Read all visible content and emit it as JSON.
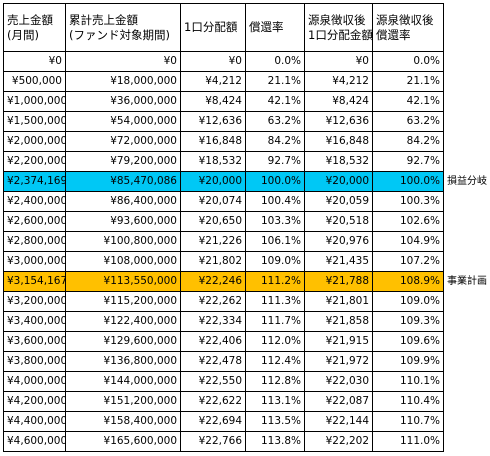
{
  "columns": [
    {
      "line1": "売上金額",
      "line2": "(月間)"
    },
    {
      "line1": "累計売上金額",
      "line2": "(ファンド対象期間)"
    },
    {
      "line1": "1口分配額",
      "line2": ""
    },
    {
      "line1": "償還率",
      "line2": ""
    },
    {
      "line1": "源泉徴収後",
      "line2": "1口分配金額"
    },
    {
      "line1": "源泉徴収後",
      "line2": "償還率"
    }
  ],
  "rows": [
    {
      "sales": "¥0",
      "cumulative": "¥0",
      "dist": "¥0",
      "rate": "0.0%",
      "dist_after_tax": "¥0",
      "rate_after_tax": "0.0%"
    },
    {
      "sales": "¥500,000",
      "cumulative": "¥18,000,000",
      "dist": "¥4,212",
      "rate": "21.1%",
      "dist_after_tax": "¥4,212",
      "rate_after_tax": "21.1%"
    },
    {
      "sales": "¥1,000,000",
      "cumulative": "¥36,000,000",
      "dist": "¥8,424",
      "rate": "42.1%",
      "dist_after_tax": "¥8,424",
      "rate_after_tax": "42.1%"
    },
    {
      "sales": "¥1,500,000",
      "cumulative": "¥54,000,000",
      "dist": "¥12,636",
      "rate": "63.2%",
      "dist_after_tax": "¥12,636",
      "rate_after_tax": "63.2%"
    },
    {
      "sales": "¥2,000,000",
      "cumulative": "¥72,000,000",
      "dist": "¥16,848",
      "rate": "84.2%",
      "dist_after_tax": "¥16,848",
      "rate_after_tax": "84.2%"
    },
    {
      "sales": "¥2,200,000",
      "cumulative": "¥79,200,000",
      "dist": "¥18,532",
      "rate": "92.7%",
      "dist_after_tax": "¥18,532",
      "rate_after_tax": "92.7%"
    },
    {
      "sales": "¥2,374,169",
      "cumulative": "¥85,470,086",
      "dist": "¥20,000",
      "rate": "100.0%",
      "dist_after_tax": "¥20,000",
      "rate_after_tax": "100.0%",
      "highlight": "#00c8f5",
      "side_label": "損益分岐"
    },
    {
      "sales": "¥2,400,000",
      "cumulative": "¥86,400,000",
      "dist": "¥20,074",
      "rate": "100.4%",
      "dist_after_tax": "¥20,059",
      "rate_after_tax": "100.3%"
    },
    {
      "sales": "¥2,600,000",
      "cumulative": "¥93,600,000",
      "dist": "¥20,650",
      "rate": "103.3%",
      "dist_after_tax": "¥20,518",
      "rate_after_tax": "102.6%"
    },
    {
      "sales": "¥2,800,000",
      "cumulative": "¥100,800,000",
      "dist": "¥21,226",
      "rate": "106.1%",
      "dist_after_tax": "¥20,976",
      "rate_after_tax": "104.9%"
    },
    {
      "sales": "¥3,000,000",
      "cumulative": "¥108,000,000",
      "dist": "¥21,802",
      "rate": "109.0%",
      "dist_after_tax": "¥21,435",
      "rate_after_tax": "107.2%"
    },
    {
      "sales": "¥3,154,167",
      "cumulative": "¥113,550,000",
      "dist": "¥22,246",
      "rate": "111.2%",
      "dist_after_tax": "¥21,788",
      "rate_after_tax": "108.9%",
      "highlight": "#ffc000",
      "side_label": "事業計画"
    },
    {
      "sales": "¥3,200,000",
      "cumulative": "¥115,200,000",
      "dist": "¥22,262",
      "rate": "111.3%",
      "dist_after_tax": "¥21,801",
      "rate_after_tax": "109.0%"
    },
    {
      "sales": "¥3,400,000",
      "cumulative": "¥122,400,000",
      "dist": "¥22,334",
      "rate": "111.7%",
      "dist_after_tax": "¥21,858",
      "rate_after_tax": "109.3%"
    },
    {
      "sales": "¥3,600,000",
      "cumulative": "¥129,600,000",
      "dist": "¥22,406",
      "rate": "112.0%",
      "dist_after_tax": "¥21,915",
      "rate_after_tax": "109.6%"
    },
    {
      "sales": "¥3,800,000",
      "cumulative": "¥136,800,000",
      "dist": "¥22,478",
      "rate": "112.4%",
      "dist_after_tax": "¥21,972",
      "rate_after_tax": "109.9%"
    },
    {
      "sales": "¥4,000,000",
      "cumulative": "¥144,000,000",
      "dist": "¥22,550",
      "rate": "112.8%",
      "dist_after_tax": "¥22,030",
      "rate_after_tax": "110.1%"
    },
    {
      "sales": "¥4,200,000",
      "cumulative": "¥151,200,000",
      "dist": "¥22,622",
      "rate": "113.1%",
      "dist_after_tax": "¥22,087",
      "rate_after_tax": "110.4%"
    },
    {
      "sales": "¥4,400,000",
      "cumulative": "¥158,400,000",
      "dist": "¥22,694",
      "rate": "113.5%",
      "dist_after_tax": "¥22,144",
      "rate_after_tax": "110.7%"
    },
    {
      "sales": "¥4,600,000",
      "cumulative": "¥165,600,000",
      "dist": "¥22,766",
      "rate": "113.8%",
      "dist_after_tax": "¥22,202",
      "rate_after_tax": "111.0%"
    }
  ]
}
